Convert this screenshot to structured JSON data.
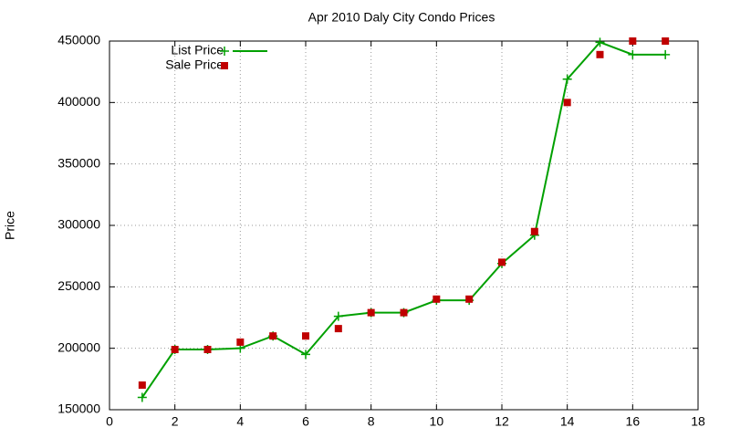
{
  "chart_data": {
    "type": "line",
    "title": "Apr 2010 Daly City Condo Prices",
    "y_label": "Price",
    "x": [
      1,
      2,
      3,
      4,
      5,
      6,
      7,
      8,
      9,
      10,
      11,
      12,
      13,
      14,
      15,
      16,
      17
    ],
    "series": [
      {
        "name": "List Price",
        "color": "#00a000",
        "style": "linespoints",
        "values": [
          160000,
          199000,
          199000,
          200000,
          210000,
          195000,
          226000,
          229000,
          229000,
          239000,
          239000,
          269000,
          292000,
          419000,
          449000,
          439000,
          439000
        ]
      },
      {
        "name": "Sale Price",
        "color": "#c00000",
        "style": "points",
        "values": [
          170000,
          199000,
          199000,
          205000,
          210000,
          210000,
          216000,
          229000,
          229000,
          240000,
          240000,
          270000,
          295000,
          400000,
          439000,
          450000,
          450000
        ]
      }
    ],
    "xlim": [
      0,
      18
    ],
    "xticks": [
      0,
      2,
      4,
      6,
      8,
      10,
      12,
      14,
      16,
      18
    ],
    "ylim": [
      150000,
      450000
    ],
    "yticks": [
      150000,
      200000,
      250000,
      300000,
      350000,
      400000,
      450000
    ],
    "grid": true,
    "legend": "top-left"
  }
}
